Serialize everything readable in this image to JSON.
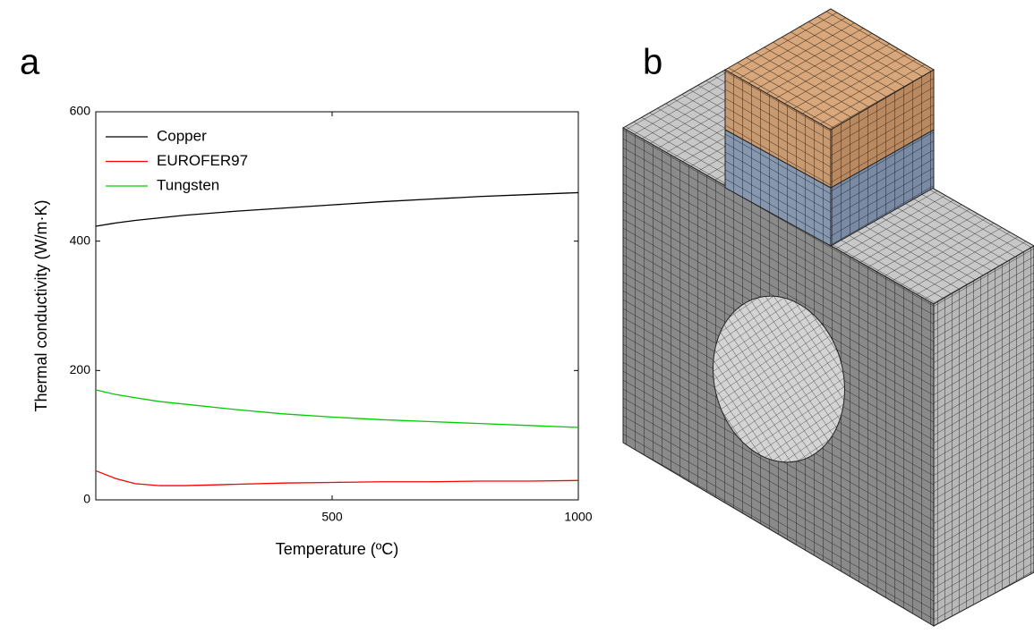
{
  "panel_labels": [
    "a",
    "b"
  ],
  "chart_data": {
    "type": "line",
    "xlabel": "Temperature (ºC)",
    "ylabel": "Thermal conductivity (W/m·K)",
    "x": [
      20,
      60,
      100,
      150,
      200,
      300,
      400,
      500,
      600,
      700,
      800,
      900,
      1000
    ],
    "series": [
      {
        "name": "Copper",
        "color": "#000000",
        "values": [
          423,
          428,
          432,
          436,
          440,
          446,
          451,
          456,
          461,
          465,
          469,
          472,
          475
        ]
      },
      {
        "name": "EUROFER97",
        "color": "#ff0000",
        "values": [
          45,
          33,
          25,
          22,
          22,
          24,
          26,
          27,
          28,
          28,
          29,
          29,
          30
        ]
      },
      {
        "name": "Tungsten",
        "color": "#00cc00",
        "values": [
          170,
          163,
          158,
          152,
          148,
          140,
          133,
          128,
          124,
          121,
          118,
          115,
          112
        ]
      }
    ],
    "xlim": [
      20,
      1000
    ],
    "xticks": [
      500,
      1000
    ],
    "ylim": [
      0,
      600
    ],
    "yticks": [
      0,
      200,
      400,
      600
    ],
    "legend": "upper-left"
  }
}
